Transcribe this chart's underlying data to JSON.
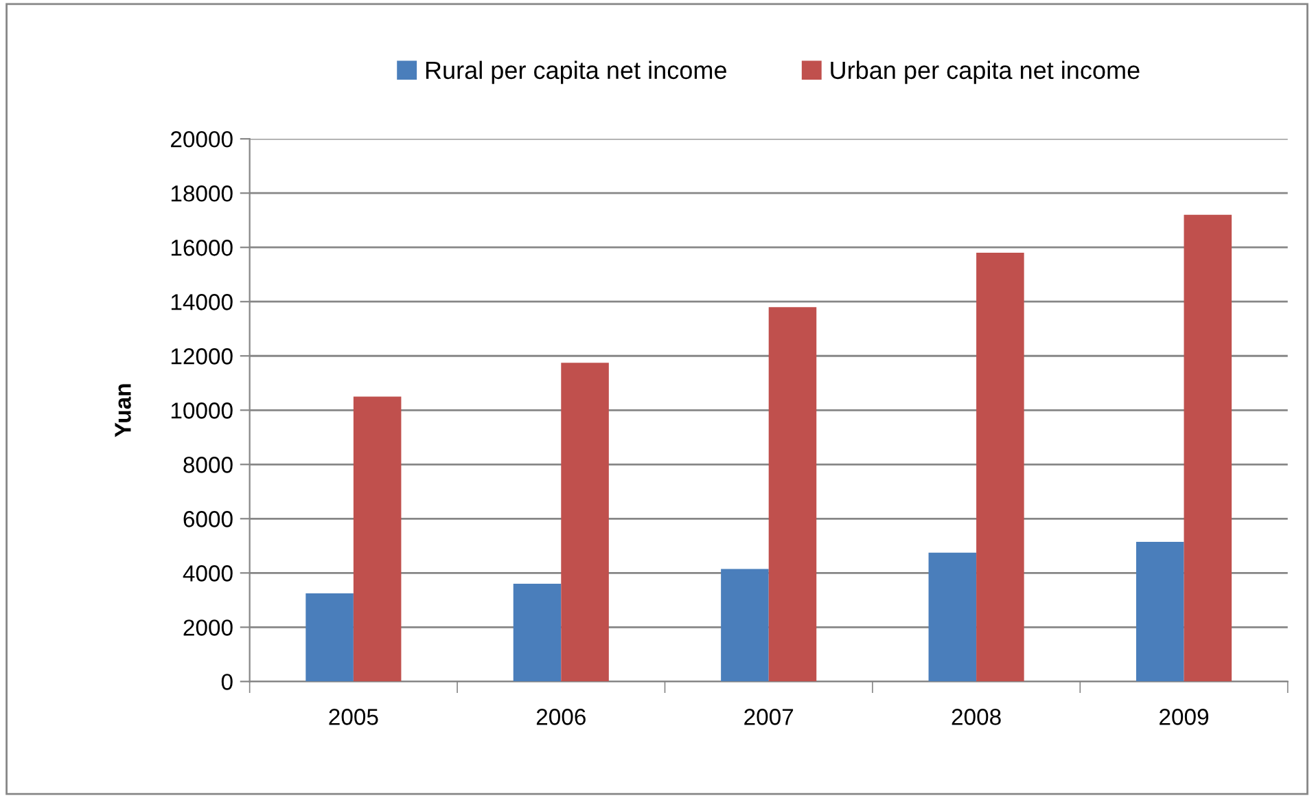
{
  "chart_data": {
    "type": "bar",
    "ylabel": "Yuan",
    "categories": [
      "2005",
      "2006",
      "2007",
      "2008",
      "2009"
    ],
    "series": [
      {
        "name": "Rural per capita net income",
        "color": "#4a7ebb",
        "values": [
          3250,
          3600,
          4150,
          4750,
          5150
        ]
      },
      {
        "name": "Urban per capita net income",
        "color": "#c0504d",
        "values": [
          10500,
          11750,
          13800,
          15800,
          17200
        ]
      }
    ],
    "ylim": [
      0,
      20000
    ],
    "yticks": [
      0,
      2000,
      4000,
      6000,
      8000,
      10000,
      12000,
      14000,
      16000,
      18000,
      20000
    ],
    "grid": "y",
    "legend": "top"
  }
}
